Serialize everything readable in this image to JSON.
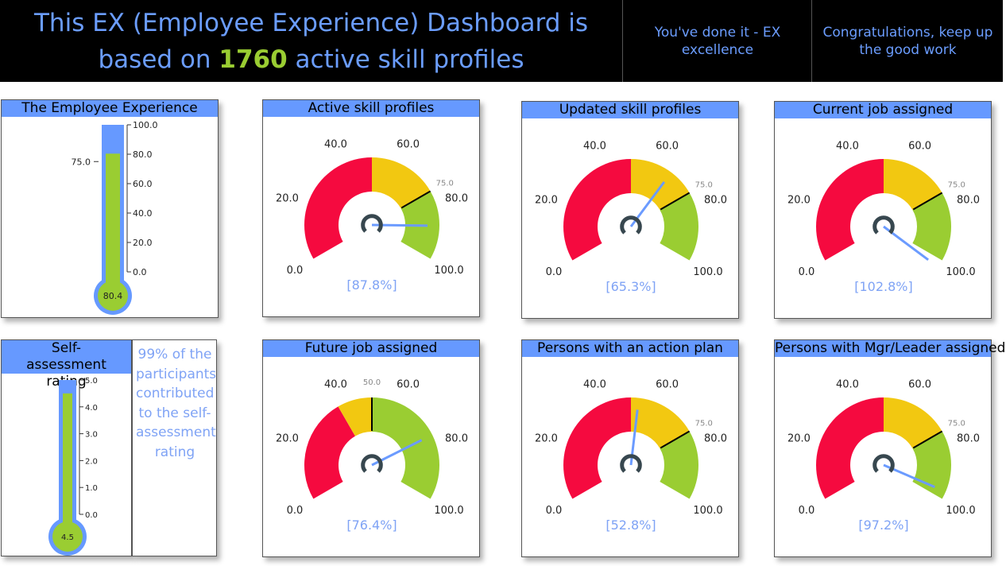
{
  "header": {
    "title_pre": "This EX (Employee Experience) Dashboard is based on ",
    "count": "1760",
    "title_post": " active skill profiles",
    "status": "You've done it - EX excellence",
    "message": "Congratulations, keep up the good work"
  },
  "colors": {
    "header_bg": "#000000",
    "accent_blue": "#6699ff",
    "green": "#9acd32",
    "red": "#f50a3f",
    "yellow": "#f2c811",
    "needle": "#6b9bff",
    "hub": "#37474f"
  },
  "thermometers": [
    {
      "title": "The Employee Experience",
      "value": 80.4,
      "value_label": "80.4",
      "max": 100,
      "target": 75,
      "target_label": "75.0",
      "ticks": [
        "0.0",
        "20.0",
        "40.0",
        "60.0",
        "80.0",
        "100.0"
      ]
    },
    {
      "title": "Self-assessment rating",
      "value": 4.5,
      "value_label": "4.5",
      "max": 5,
      "ticks": [
        "0.0",
        "1.0",
        "2.0",
        "3.0",
        "4.0",
        "5.0"
      ]
    }
  ],
  "self_assessment_note": "99% of the participants contributed to the self-assessment rating",
  "gauge_ticks": [
    "0.0",
    "20.0",
    "40.0",
    "60.0",
    "80.0",
    "100.0"
  ],
  "gauges": [
    {
      "title": "Active skill profiles",
      "value": 87.8,
      "value_label": "[87.8%]",
      "target": 75,
      "target_label": "75.0",
      "bands": [
        [
          0,
          50,
          "red"
        ],
        [
          50,
          75,
          "yellow"
        ],
        [
          75,
          100,
          "green"
        ]
      ]
    },
    {
      "title": "Updated skill profiles",
      "value": 65.3,
      "value_label": "[65.3%]",
      "target": 75,
      "target_label": "75.0",
      "bands": [
        [
          0,
          50,
          "red"
        ],
        [
          50,
          75,
          "yellow"
        ],
        [
          75,
          100,
          "green"
        ]
      ]
    },
    {
      "title": "Current job assigned",
      "value": 102.8,
      "value_label": "[102.8%]",
      "target": 75,
      "target_label": "75.0",
      "bands": [
        [
          0,
          50,
          "red"
        ],
        [
          50,
          75,
          "yellow"
        ],
        [
          75,
          100,
          "green"
        ]
      ]
    },
    {
      "title": "Future job assigned",
      "value": 76.4,
      "value_label": "[76.4%]",
      "target": 50,
      "target_label": "50.0",
      "bands": [
        [
          0,
          37.5,
          "red"
        ],
        [
          37.5,
          50,
          "yellow"
        ],
        [
          50,
          100,
          "green"
        ]
      ]
    },
    {
      "title": "Persons with an action plan",
      "value": 52.8,
      "value_label": "[52.8%]",
      "target": 75,
      "target_label": "75.0",
      "bands": [
        [
          0,
          50,
          "red"
        ],
        [
          50,
          75,
          "yellow"
        ],
        [
          75,
          100,
          "green"
        ]
      ]
    },
    {
      "title": "Persons with Mgr/Leader assigned",
      "value": 97.2,
      "value_label": "[97.2%]",
      "target": 75,
      "target_label": "75.0",
      "bands": [
        [
          0,
          50,
          "red"
        ],
        [
          50,
          75,
          "yellow"
        ],
        [
          75,
          100,
          "green"
        ]
      ]
    }
  ]
}
